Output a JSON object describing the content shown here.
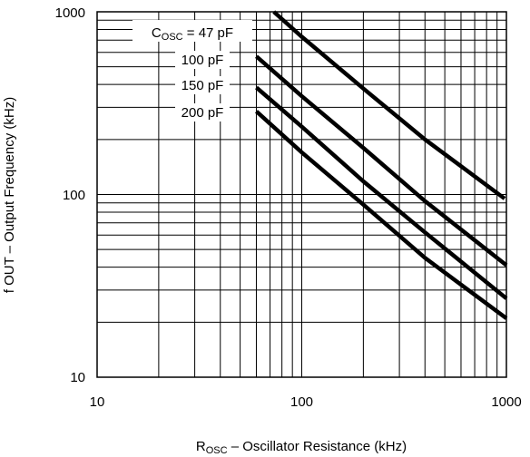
{
  "chart_data": {
    "type": "line",
    "x_scale": "log",
    "y_scale": "log",
    "xlim": [
      10,
      1000
    ],
    "ylim": [
      10,
      1000
    ],
    "grid": true,
    "xlabel": {
      "prefix": "R",
      "subscript": "OSC",
      "suffix": " – Oscillator Resistance (kHz)"
    },
    "ylabel": "f OUT – Output Frequency (kHz)",
    "x_tick_labels": [
      "10",
      "100",
      "1000"
    ],
    "y_tick_labels": [
      "10",
      "100",
      "1000"
    ],
    "series": [
      {
        "name": "C_OSC = 47 pF",
        "label": {
          "prefix": "C",
          "subscript": "OSC",
          "suffix": " = 47 pF"
        },
        "x": [
          73,
          100,
          200,
          400,
          980
        ],
        "y": [
          1000,
          730,
          380,
          200,
          95
        ]
      },
      {
        "name": "100 pF",
        "label": {
          "prefix": "",
          "subscript": "",
          "suffix": "100 pF"
        },
        "x": [
          60,
          100,
          200,
          400,
          1000
        ],
        "y": [
          570,
          345,
          180,
          92,
          41
        ]
      },
      {
        "name": "150 pF",
        "label": {
          "prefix": "",
          "subscript": "",
          "suffix": "150 pF"
        },
        "x": [
          60,
          100,
          200,
          400,
          1000
        ],
        "y": [
          385,
          235,
          118,
          62,
          27
        ]
      },
      {
        "name": "200 pF",
        "label": {
          "prefix": "",
          "subscript": "",
          "suffix": "200 pF"
        },
        "x": [
          60,
          100,
          200,
          400,
          1000
        ],
        "y": [
          285,
          170,
          88,
          45,
          21
        ]
      }
    ]
  }
}
